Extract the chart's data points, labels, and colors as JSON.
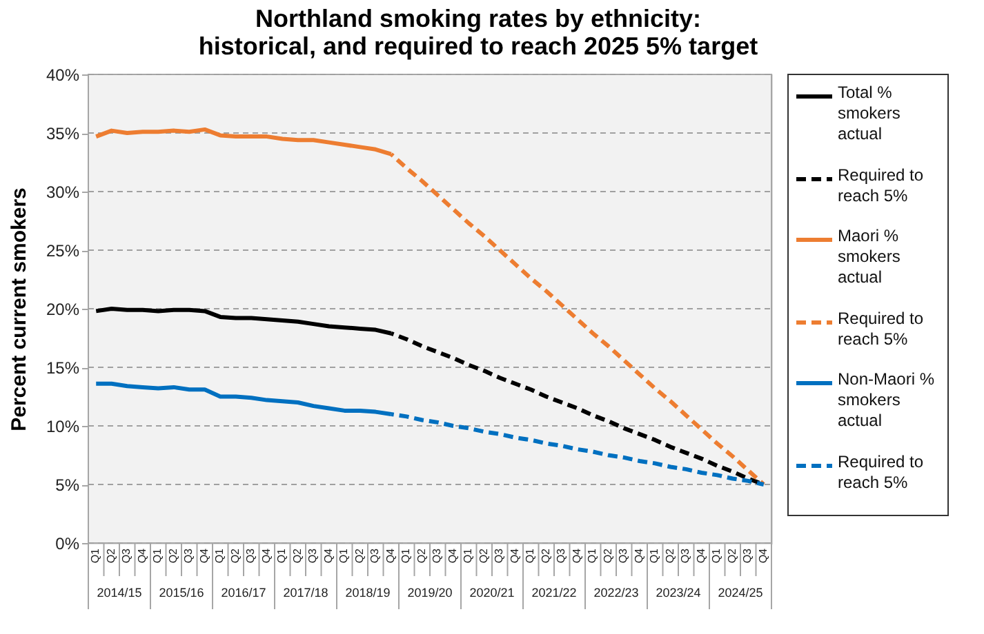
{
  "chart_data": {
    "type": "line",
    "title": "Northland smoking rates by ethnicity: historical, and required to reach 2025 5% target",
    "ylabel": "Percent current smokers",
    "categories": [
      "Q1",
      "Q2",
      "Q3",
      "Q4",
      "Q1",
      "Q2",
      "Q3",
      "Q4",
      "Q1",
      "Q2",
      "Q3",
      "Q4",
      "Q1",
      "Q2",
      "Q3",
      "Q4",
      "Q1",
      "Q2",
      "Q3",
      "Q4",
      "Q1",
      "Q2",
      "Q3",
      "Q4",
      "Q1",
      "Q2",
      "Q3",
      "Q4",
      "Q1",
      "Q2",
      "Q3",
      "Q4",
      "Q1",
      "Q2",
      "Q3",
      "Q4",
      "Q1",
      "Q2",
      "Q3",
      "Q4",
      "Q1",
      "Q2",
      "Q3",
      "Q4"
    ],
    "annotations": [
      "2014/15",
      "2015/16",
      "2016/17",
      "2017/18",
      "2018/19",
      "2019/20",
      "2020/21",
      "2021/22",
      "2022/23",
      "2023/24",
      "2024/25"
    ],
    "series": [
      {
        "name": "Total % smokers actual",
        "color": "#000000",
        "line_style": "solid",
        "values": [
          19.8,
          20.0,
          19.9,
          19.9,
          19.8,
          19.9,
          19.9,
          19.8,
          19.3,
          19.2,
          19.2,
          19.1,
          19.0,
          18.9,
          18.7,
          18.5,
          18.4,
          18.3,
          18.2,
          17.9,
          null,
          null,
          null,
          null,
          null,
          null,
          null,
          null,
          null,
          null,
          null,
          null,
          null,
          null,
          null,
          null,
          null,
          null,
          null,
          null,
          null,
          null,
          null,
          null
        ]
      },
      {
        "name": "Required to reach 5%",
        "color": "#000000",
        "line_style": "dashed",
        "values": [
          null,
          null,
          null,
          null,
          null,
          null,
          null,
          null,
          null,
          null,
          null,
          null,
          null,
          null,
          null,
          null,
          null,
          null,
          null,
          17.9,
          17.4,
          16.8,
          16.3,
          15.8,
          15.2,
          14.7,
          14.1,
          13.6,
          13.1,
          12.5,
          12.0,
          11.5,
          10.9,
          10.4,
          9.8,
          9.3,
          8.8,
          8.2,
          7.7,
          7.2,
          6.6,
          6.1,
          5.5,
          5.0
        ]
      },
      {
        "name": "Maori % smokers actual",
        "color": "#ed7d31",
        "line_style": "solid",
        "values": [
          34.7,
          35.2,
          35.0,
          35.1,
          35.1,
          35.2,
          35.1,
          35.3,
          34.8,
          34.7,
          34.7,
          34.7,
          34.5,
          34.4,
          34.4,
          34.2,
          34.0,
          33.8,
          33.6,
          33.2,
          null,
          null,
          null,
          null,
          null,
          null,
          null,
          null,
          null,
          null,
          null,
          null,
          null,
          null,
          null,
          null,
          null,
          null,
          null,
          null,
          null,
          null,
          null,
          null
        ]
      },
      {
        "name": "Required to reach 5%",
        "color": "#ed7d31",
        "line_style": "dashed",
        "values": [
          null,
          null,
          null,
          null,
          null,
          null,
          null,
          null,
          null,
          null,
          null,
          null,
          null,
          null,
          null,
          null,
          null,
          null,
          null,
          33.2,
          32.0,
          30.9,
          29.7,
          28.5,
          27.3,
          26.2,
          25.0,
          23.8,
          22.6,
          21.5,
          20.3,
          19.1,
          17.9,
          16.8,
          15.6,
          14.4,
          13.2,
          12.1,
          10.9,
          9.7,
          8.5,
          7.4,
          6.2,
          5.0
        ]
      },
      {
        "name": "Non-Maori % smokers actual",
        "color": "#0070c0",
        "line_style": "solid",
        "values": [
          13.6,
          13.6,
          13.4,
          13.3,
          13.2,
          13.3,
          13.1,
          13.1,
          12.5,
          12.5,
          12.4,
          12.2,
          12.1,
          12.0,
          11.7,
          11.5,
          11.3,
          11.3,
          11.2,
          11.0,
          null,
          null,
          null,
          null,
          null,
          null,
          null,
          null,
          null,
          null,
          null,
          null,
          null,
          null,
          null,
          null,
          null,
          null,
          null,
          null,
          null,
          null,
          null,
          null
        ]
      },
      {
        "name": "Required to reach 5%",
        "color": "#0070c0",
        "line_style": "dashed",
        "values": [
          null,
          null,
          null,
          null,
          null,
          null,
          null,
          null,
          null,
          null,
          null,
          null,
          null,
          null,
          null,
          null,
          null,
          null,
          null,
          11.0,
          10.8,
          10.5,
          10.3,
          10.0,
          9.8,
          9.5,
          9.3,
          9.0,
          8.8,
          8.5,
          8.3,
          8.0,
          7.8,
          7.5,
          7.3,
          7.0,
          6.8,
          6.5,
          6.3,
          6.0,
          5.8,
          5.5,
          5.3,
          5.0
        ]
      }
    ],
    "ylim": [
      0,
      40
    ],
    "yticks": [
      {
        "value": 0,
        "label": "0%"
      },
      {
        "value": 5,
        "label": "5%"
      },
      {
        "value": 10,
        "label": "10%"
      },
      {
        "value": 15,
        "label": "15%"
      },
      {
        "value": 20,
        "label": "20%"
      },
      {
        "value": 25,
        "label": "25%"
      },
      {
        "value": 30,
        "label": "30%"
      },
      {
        "value": 35,
        "label": "35%"
      },
      {
        "value": 40,
        "label": "40%"
      }
    ],
    "grid": "y",
    "legend": "right",
    "marker": "none"
  }
}
